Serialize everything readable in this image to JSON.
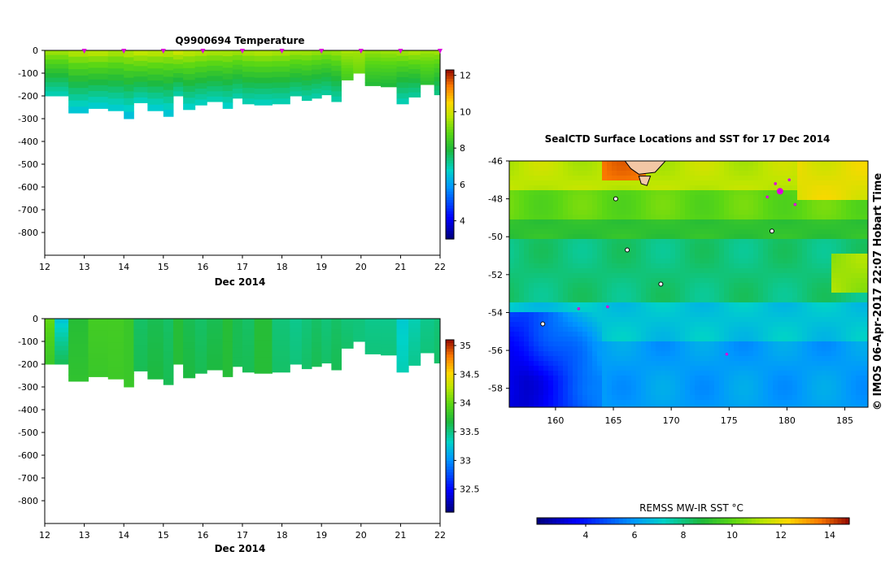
{
  "chart_data": [
    {
      "type": "heatmap",
      "title": "Q9900694  Temperature",
      "xlabel": "Dec 2014",
      "x_ticks": [
        "12",
        "13",
        "14",
        "15",
        "16",
        "17",
        "18",
        "19",
        "20",
        "21",
        "22"
      ],
      "xlim": [
        12,
        22
      ],
      "y_ticks": [
        "0",
        "-100",
        "-200",
        "-300",
        "-400",
        "-500",
        "-600",
        "-700",
        "-800"
      ],
      "ylim": [
        -900,
        0
      ],
      "profile_markers_day": [
        13,
        14,
        15,
        16,
        17,
        18,
        19,
        20,
        21,
        22
      ],
      "profiles": [
        {
          "x0": 12.0,
          "x1": 12.6,
          "depth": 200,
          "surface": 9.6,
          "bottom": 6.8
        },
        {
          "x0": 12.6,
          "x1": 13.1,
          "depth": 275,
          "surface": 9.8,
          "bottom": 6.4
        },
        {
          "x0": 13.1,
          "x1": 13.6,
          "depth": 255,
          "surface": 9.9,
          "bottom": 6.5
        },
        {
          "x0": 13.6,
          "x1": 14.0,
          "depth": 265,
          "surface": 9.7,
          "bottom": 6.5
        },
        {
          "x0": 14.0,
          "x1": 14.25,
          "depth": 300,
          "surface": 9.8,
          "bottom": 6.3
        },
        {
          "x0": 14.25,
          "x1": 14.6,
          "depth": 230,
          "surface": 10.0,
          "bottom": 6.7
        },
        {
          "x0": 14.6,
          "x1": 15.0,
          "depth": 265,
          "surface": 9.9,
          "bottom": 6.5
        },
        {
          "x0": 15.0,
          "x1": 15.25,
          "depth": 290,
          "surface": 9.8,
          "bottom": 6.4
        },
        {
          "x0": 15.25,
          "x1": 15.5,
          "depth": 200,
          "surface": 10.1,
          "bottom": 6.9
        },
        {
          "x0": 15.5,
          "x1": 15.8,
          "depth": 260,
          "surface": 9.9,
          "bottom": 6.6
        },
        {
          "x0": 15.8,
          "x1": 16.1,
          "depth": 240,
          "surface": 9.8,
          "bottom": 6.7
        },
        {
          "x0": 16.1,
          "x1": 16.5,
          "depth": 225,
          "surface": 9.7,
          "bottom": 6.8
        },
        {
          "x0": 16.5,
          "x1": 16.75,
          "depth": 255,
          "surface": 9.7,
          "bottom": 6.6
        },
        {
          "x0": 16.75,
          "x1": 17.0,
          "depth": 210,
          "surface": 9.6,
          "bottom": 6.9
        },
        {
          "x0": 17.0,
          "x1": 17.3,
          "depth": 235,
          "surface": 9.7,
          "bottom": 6.8
        },
        {
          "x0": 17.3,
          "x1": 17.75,
          "depth": 240,
          "surface": 9.8,
          "bottom": 6.7
        },
        {
          "x0": 17.75,
          "x1": 18.2,
          "depth": 235,
          "surface": 9.7,
          "bottom": 6.8
        },
        {
          "x0": 18.2,
          "x1": 18.5,
          "depth": 200,
          "surface": 9.6,
          "bottom": 7.0
        },
        {
          "x0": 18.5,
          "x1": 18.75,
          "depth": 220,
          "surface": 9.6,
          "bottom": 6.9
        },
        {
          "x0": 18.75,
          "x1": 19.0,
          "depth": 210,
          "surface": 9.5,
          "bottom": 6.9
        },
        {
          "x0": 19.0,
          "x1": 19.25,
          "depth": 195,
          "surface": 9.4,
          "bottom": 7.0
        },
        {
          "x0": 19.25,
          "x1": 19.5,
          "depth": 225,
          "surface": 9.5,
          "bottom": 6.9
        },
        {
          "x0": 19.5,
          "x1": 19.8,
          "depth": 130,
          "surface": 9.6,
          "bottom": 8.4
        },
        {
          "x0": 19.8,
          "x1": 20.1,
          "depth": 100,
          "surface": 9.5,
          "bottom": 8.9
        },
        {
          "x0": 20.1,
          "x1": 20.5,
          "depth": 155,
          "surface": 9.4,
          "bottom": 7.9
        },
        {
          "x0": 20.5,
          "x1": 20.9,
          "depth": 160,
          "surface": 9.5,
          "bottom": 7.8
        },
        {
          "x0": 20.9,
          "x1": 21.2,
          "depth": 235,
          "surface": 9.6,
          "bottom": 6.8
        },
        {
          "x0": 21.2,
          "x1": 21.5,
          "depth": 205,
          "surface": 9.7,
          "bottom": 7.0
        },
        {
          "x0": 21.5,
          "x1": 21.85,
          "depth": 150,
          "surface": 9.5,
          "bottom": 8.0
        },
        {
          "x0": 21.85,
          "x1": 22.1,
          "depth": 195,
          "surface": 9.6,
          "bottom": 7.2
        }
      ],
      "colorbar": {
        "ticks": [
          "4",
          "6",
          "8",
          "10",
          "12"
        ],
        "range": [
          3,
          12.3
        ]
      }
    },
    {
      "type": "heatmap",
      "title": "",
      "xlabel": "Dec 2014",
      "x_ticks": [
        "12",
        "13",
        "14",
        "15",
        "16",
        "17",
        "18",
        "19",
        "20",
        "21",
        "22"
      ],
      "xlim": [
        12,
        22
      ],
      "y_ticks": [
        "0",
        "-100",
        "-200",
        "-300",
        "-400",
        "-500",
        "-600",
        "-700",
        "-800"
      ],
      "ylim": [
        -900,
        0
      ],
      "profiles": [
        {
          "x0": 12.0,
          "x1": 12.25,
          "depth": 200,
          "surface": 34.0,
          "bottom": 33.8
        },
        {
          "x0": 12.25,
          "x1": 12.6,
          "depth": 200,
          "surface": 33.2,
          "bottom": 33.6
        },
        {
          "x0": 12.6,
          "x1": 13.1,
          "depth": 275,
          "surface": 33.7,
          "bottom": 33.75
        },
        {
          "x0": 13.1,
          "x1": 13.6,
          "depth": 255,
          "surface": 33.85,
          "bottom": 33.8
        },
        {
          "x0": 13.6,
          "x1": 14.0,
          "depth": 265,
          "surface": 33.85,
          "bottom": 33.82
        },
        {
          "x0": 14.0,
          "x1": 14.25,
          "depth": 300,
          "surface": 33.8,
          "bottom": 33.8
        },
        {
          "x0": 14.25,
          "x1": 14.6,
          "depth": 230,
          "surface": 33.55,
          "bottom": 33.6
        },
        {
          "x0": 14.6,
          "x1": 15.0,
          "depth": 265,
          "surface": 33.6,
          "bottom": 33.65
        },
        {
          "x0": 15.0,
          "x1": 15.25,
          "depth": 290,
          "surface": 33.55,
          "bottom": 33.6
        },
        {
          "x0": 15.25,
          "x1": 15.5,
          "depth": 200,
          "surface": 33.7,
          "bottom": 33.7
        },
        {
          "x0": 15.5,
          "x1": 15.8,
          "depth": 260,
          "surface": 33.6,
          "bottom": 33.65
        },
        {
          "x0": 15.8,
          "x1": 16.1,
          "depth": 240,
          "surface": 33.55,
          "bottom": 33.6
        },
        {
          "x0": 16.1,
          "x1": 16.5,
          "depth": 225,
          "surface": 33.6,
          "bottom": 33.65
        },
        {
          "x0": 16.5,
          "x1": 16.75,
          "depth": 255,
          "surface": 33.7,
          "bottom": 33.7
        },
        {
          "x0": 16.75,
          "x1": 17.0,
          "depth": 210,
          "surface": 33.6,
          "bottom": 33.6
        },
        {
          "x0": 17.0,
          "x1": 17.3,
          "depth": 235,
          "surface": 33.55,
          "bottom": 33.6
        },
        {
          "x0": 17.3,
          "x1": 17.75,
          "depth": 240,
          "surface": 33.7,
          "bottom": 33.7
        },
        {
          "x0": 17.75,
          "x1": 18.2,
          "depth": 235,
          "surface": 33.5,
          "bottom": 33.55
        },
        {
          "x0": 18.2,
          "x1": 18.5,
          "depth": 200,
          "surface": 33.45,
          "bottom": 33.5
        },
        {
          "x0": 18.5,
          "x1": 18.75,
          "depth": 220,
          "surface": 33.5,
          "bottom": 33.55
        },
        {
          "x0": 18.75,
          "x1": 19.0,
          "depth": 210,
          "surface": 33.55,
          "bottom": 33.6
        },
        {
          "x0": 19.0,
          "x1": 19.25,
          "depth": 195,
          "surface": 33.5,
          "bottom": 33.55
        },
        {
          "x0": 19.25,
          "x1": 19.5,
          "depth": 225,
          "surface": 33.55,
          "bottom": 33.6
        },
        {
          "x0": 19.5,
          "x1": 19.8,
          "depth": 130,
          "surface": 33.5,
          "bottom": 33.55
        },
        {
          "x0": 19.8,
          "x1": 20.1,
          "depth": 100,
          "surface": 33.5,
          "bottom": 33.5
        },
        {
          "x0": 20.1,
          "x1": 20.5,
          "depth": 155,
          "surface": 33.45,
          "bottom": 33.5
        },
        {
          "x0": 20.5,
          "x1": 20.9,
          "depth": 160,
          "surface": 33.45,
          "bottom": 33.5
        },
        {
          "x0": 20.9,
          "x1": 21.2,
          "depth": 235,
          "surface": 33.25,
          "bottom": 33.35
        },
        {
          "x0": 21.2,
          "x1": 21.5,
          "depth": 205,
          "surface": 33.35,
          "bottom": 33.45
        },
        {
          "x0": 21.5,
          "x1": 21.85,
          "depth": 150,
          "surface": 33.45,
          "bottom": 33.5
        },
        {
          "x0": 21.85,
          "x1": 22.1,
          "depth": 195,
          "surface": 33.5,
          "bottom": 33.55
        }
      ],
      "colorbar": {
        "ticks": [
          "32.5",
          "33",
          "33.5",
          "34",
          "34.5",
          "35"
        ],
        "range": [
          32.1,
          35.1
        ]
      }
    },
    {
      "type": "heatmap",
      "title": "SealCTD Surface Locations and SST for 17 Dec 2014",
      "xlabel": "",
      "ylabel": "",
      "x_ticks": [
        "160",
        "165",
        "170",
        "175",
        "180",
        "185"
      ],
      "xlim": [
        156,
        187
      ],
      "y_ticks": [
        "-46",
        "-48",
        "-50",
        "-52",
        "-54",
        "-56",
        "-58"
      ],
      "ylim": [
        -59,
        -46
      ],
      "sst_field_note": "SST decreases from ~11-13 near -46 to ~2-4 in the south-west near -57",
      "sst_zones": [
        {
          "lat_from": -46,
          "lat_to": -47.5,
          "sst": 11.2
        },
        {
          "lat_from": -47.5,
          "lat_to": -49.0,
          "sst": 10.0
        },
        {
          "lat_from": -49.0,
          "lat_to": -50.2,
          "sst": 9.0
        },
        {
          "lat_from": -50.2,
          "lat_to": -53.5,
          "sst": 8.0
        },
        {
          "lat_from": -53.5,
          "lat_to": -55.5,
          "sst": 6.8
        },
        {
          "lat_from": -55.5,
          "lat_to": -59.0,
          "sst": 6.0
        }
      ],
      "cold_pool": {
        "lon": [
          156,
          164
        ],
        "lat": [
          -59,
          -54
        ],
        "sst": 3.0
      },
      "warm_north": {
        "lon": [
          164,
          168
        ],
        "lat": [
          -47,
          -46
        ],
        "sst": 13.5
      },
      "islands": [
        {
          "lon": 166.2,
          "lat": -50.7
        },
        {
          "lon": 169.1,
          "lat": -52.5
        },
        {
          "lon": 158.9,
          "lat": -54.6
        },
        {
          "lon": 178.7,
          "lat": -49.7
        },
        {
          "lon": 165.2,
          "lat": -48.0
        }
      ],
      "seal_tracks": [
        {
          "lon": 179.4,
          "lat": -47.6
        },
        {
          "lon": 179.0,
          "lat": -47.2
        },
        {
          "lon": 178.3,
          "lat": -47.9
        },
        {
          "lon": 180.2,
          "lat": -47.0
        },
        {
          "lon": 180.7,
          "lat": -48.3
        },
        {
          "lon": 162.0,
          "lat": -53.8
        },
        {
          "lon": 164.5,
          "lat": -53.7
        },
        {
          "lon": 174.8,
          "lat": -56.2
        }
      ],
      "colorbar": {
        "label": "REMSS MW-IR SST °C",
        "ticks": [
          "4",
          "6",
          "8",
          "10",
          "12",
          "14"
        ],
        "range": [
          2,
          14.8
        ]
      }
    }
  ],
  "side_caption": "© IMOS 06-Apr-2017 22:07 Hobart Time",
  "colors": {
    "sea_land": "#f3c7a5",
    "frame": "#000000",
    "marker": "#dd00dd"
  }
}
